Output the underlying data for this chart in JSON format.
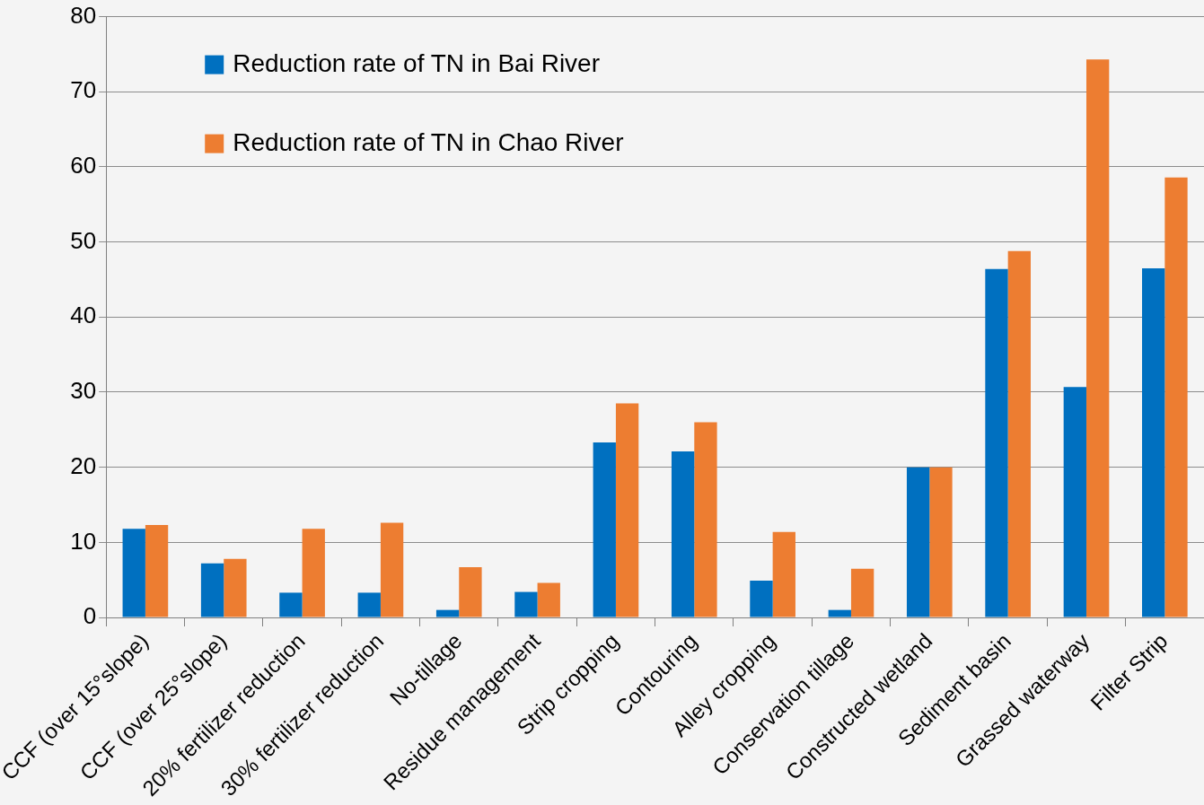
{
  "chart_data": {
    "type": "bar",
    "categories": [
      "CCF (over 15°slope)",
      "CCF (over 25°slope)",
      "20% fertilizer reduction",
      "30% fertilizer reduction",
      "No-tillage",
      "Residue management",
      "Strip cropping",
      "Contouring",
      "Alley cropping",
      "Conservation tillage",
      "Constructed wetland",
      "Sediment basin",
      "Grassed waterway",
      "Filter Strip"
    ],
    "series": [
      {
        "name": "Reduction rate of TN in Bai River",
        "color": "#0070c0",
        "values": [
          11.8,
          7.2,
          3.3,
          3.3,
          1.0,
          3.4,
          23.3,
          22.1,
          4.9,
          1.0,
          20,
          46.4,
          30.7,
          46.5
        ]
      },
      {
        "name": "Reduction rate of TN in Chao River",
        "color": "#ed7d31",
        "values": [
          12.3,
          7.8,
          11.8,
          12.6,
          6.7,
          4.6,
          28.5,
          26,
          11.4,
          6.5,
          20,
          48.8,
          74.3,
          58.6
        ]
      }
    ],
    "ylim": [
      0,
      80
    ],
    "yticks": [
      0,
      10,
      20,
      30,
      40,
      50,
      60,
      70,
      80
    ],
    "grid": "y",
    "legend": "top left"
  }
}
